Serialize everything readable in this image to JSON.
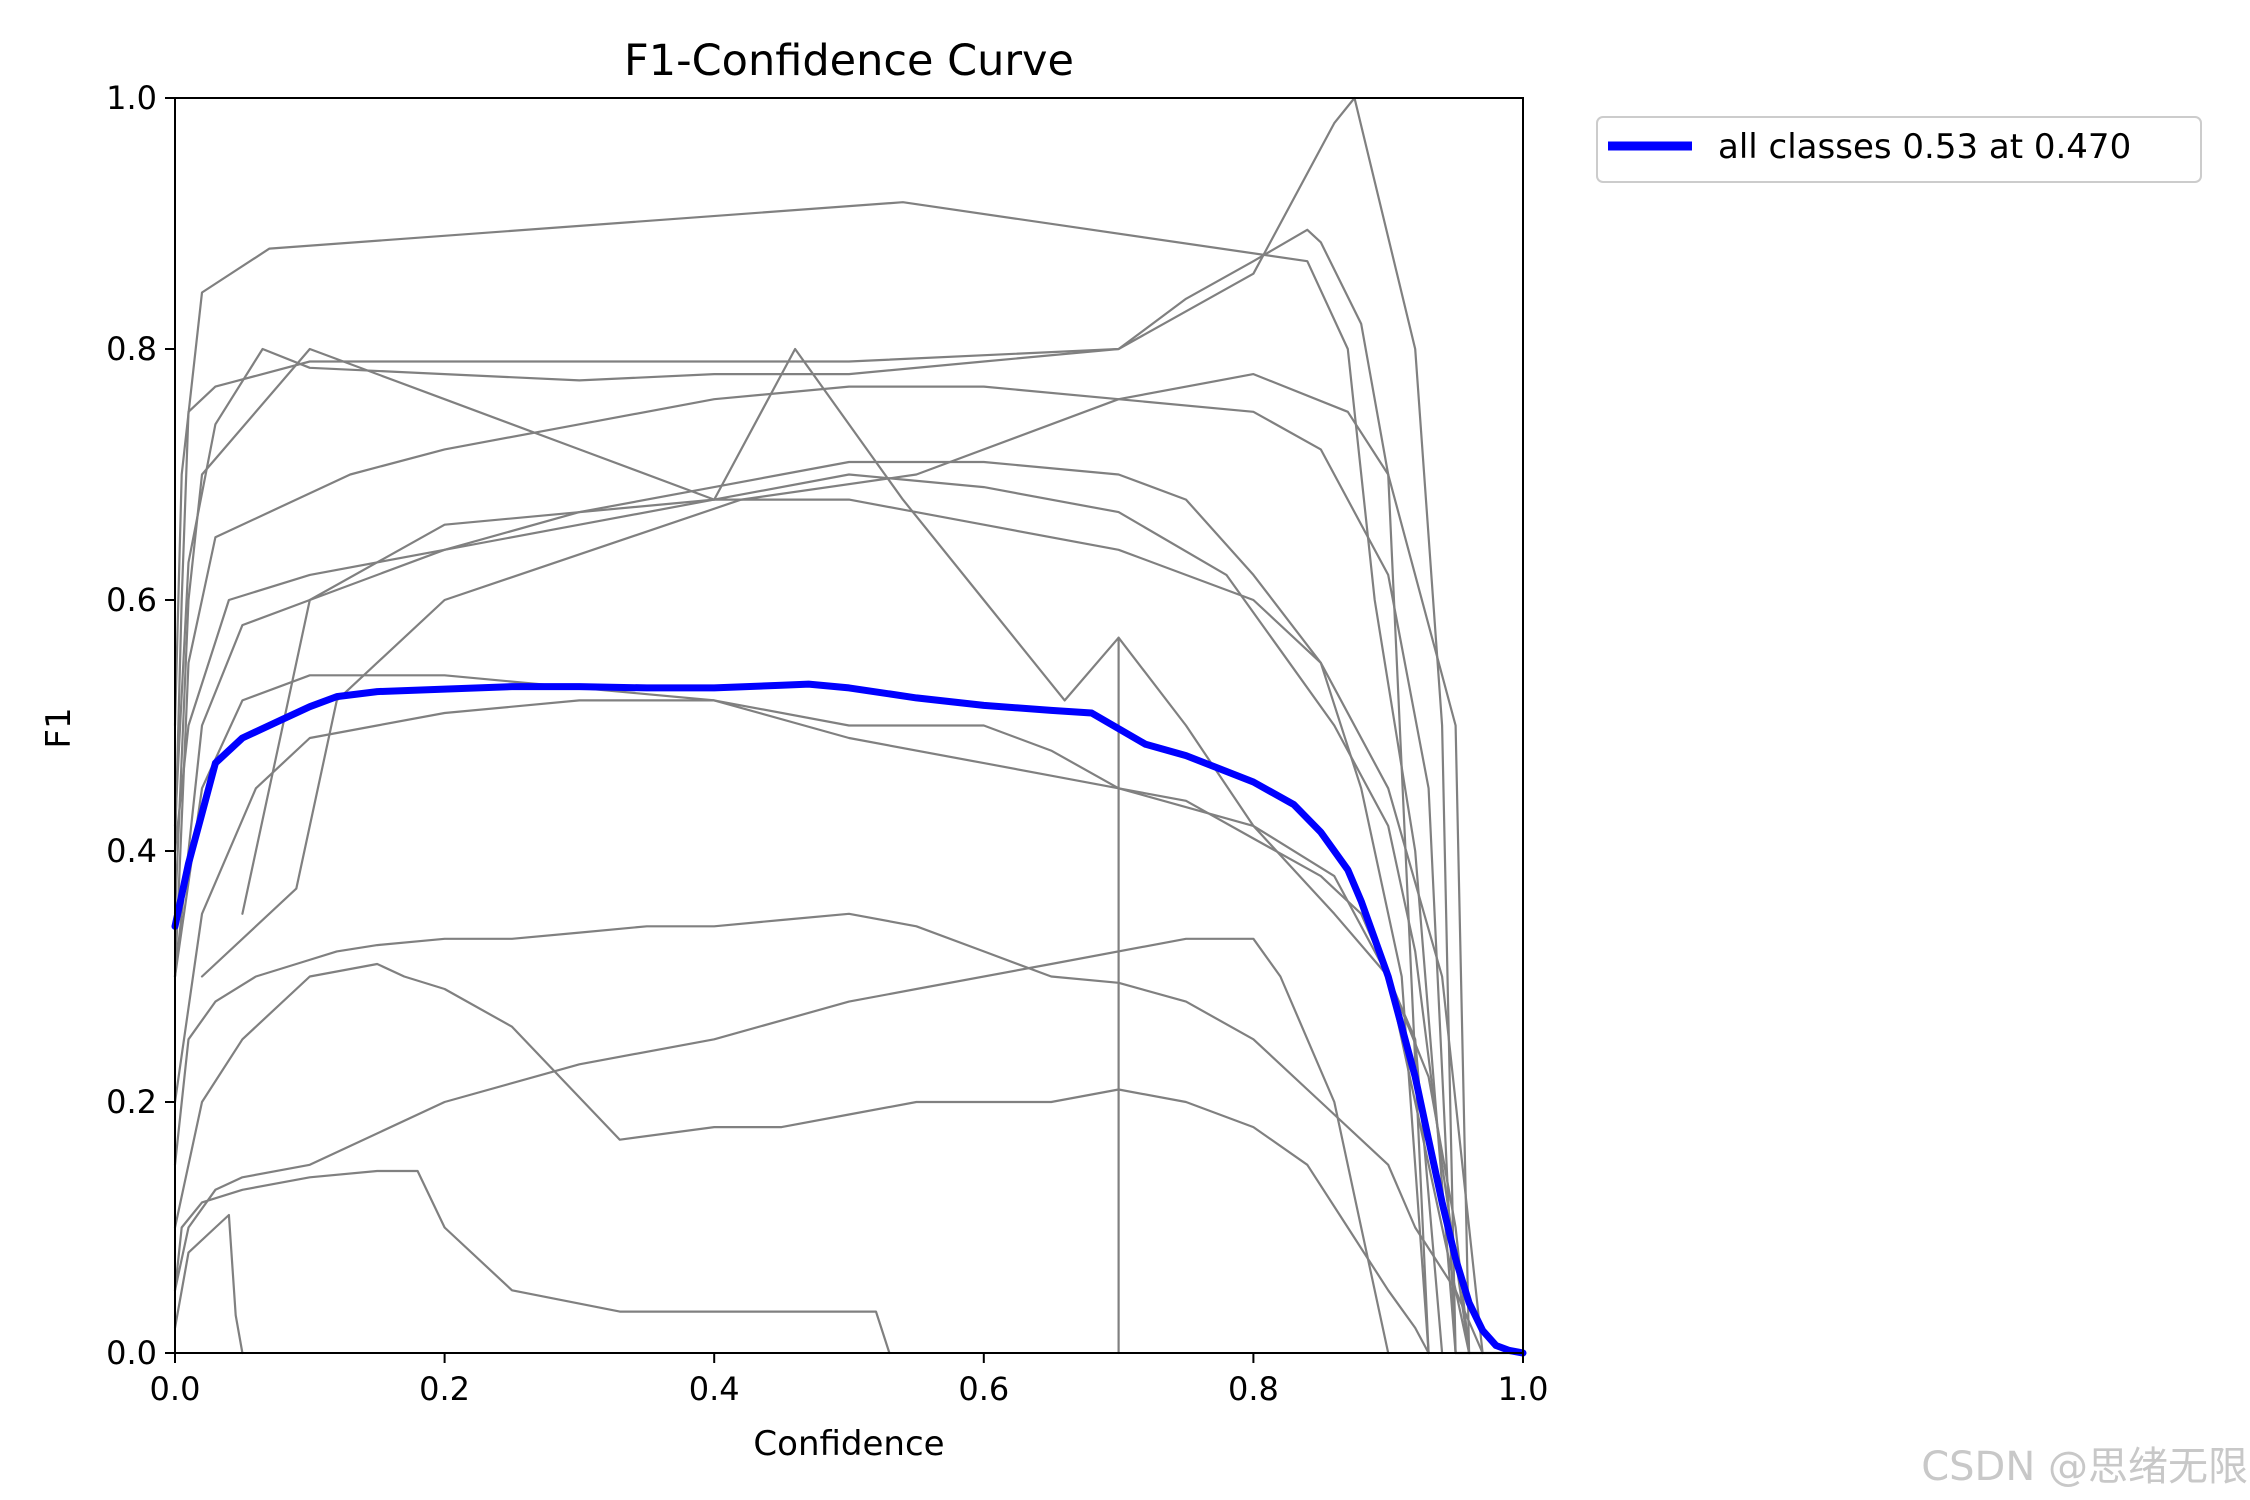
{
  "watermark": "CSDN @思绪无限",
  "chart_data": {
    "type": "line",
    "title": "F1-Confidence Curve",
    "xlabel": "Confidence",
    "ylabel": "F1",
    "xlim": [
      0.0,
      1.0
    ],
    "ylim": [
      0.0,
      1.0
    ],
    "x_ticks": [
      "0.0",
      "0.2",
      "0.4",
      "0.6",
      "0.8",
      "1.0"
    ],
    "y_ticks": [
      "0.0",
      "0.2",
      "0.4",
      "0.6",
      "0.8",
      "1.0"
    ],
    "grid": false,
    "legend": {
      "placement": "outside-top-right",
      "entries": [
        "all classes 0.53 at 0.470"
      ]
    },
    "colors": {
      "class_curves": "#808080",
      "all_classes": "#0000ff"
    },
    "series": [
      {
        "name": "all classes 0.53 at 0.470",
        "highlight": true,
        "x": [
          0.0,
          0.01,
          0.02,
          0.03,
          0.05,
          0.08,
          0.1,
          0.12,
          0.15,
          0.2,
          0.25,
          0.3,
          0.35,
          0.4,
          0.45,
          0.47,
          0.5,
          0.55,
          0.6,
          0.65,
          0.68,
          0.72,
          0.75,
          0.8,
          0.83,
          0.85,
          0.87,
          0.88,
          0.89,
          0.9,
          0.91,
          0.92,
          0.93,
          0.94,
          0.95,
          0.96,
          0.97,
          0.98,
          0.99,
          1.0
        ],
        "y": [
          0.34,
          0.39,
          0.43,
          0.47,
          0.49,
          0.505,
          0.515,
          0.523,
          0.527,
          0.529,
          0.531,
          0.531,
          0.53,
          0.53,
          0.532,
          0.533,
          0.53,
          0.522,
          0.516,
          0.512,
          0.51,
          0.485,
          0.476,
          0.455,
          0.437,
          0.415,
          0.385,
          0.36,
          0.33,
          0.3,
          0.26,
          0.22,
          0.17,
          0.12,
          0.075,
          0.04,
          0.018,
          0.006,
          0.002,
          0.0
        ]
      },
      {
        "x": [
          0.0,
          0.005,
          0.02,
          0.07,
          0.54,
          0.84,
          0.87,
          0.89,
          0.92,
          0.95,
          1.0
        ],
        "y": [
          0.5,
          0.7,
          0.845,
          0.88,
          0.917,
          0.87,
          0.8,
          0.6,
          0.4,
          0.0,
          0.0
        ]
      },
      {
        "x": [
          0.0,
          0.005,
          0.01,
          0.03,
          0.1,
          0.5,
          0.7,
          0.8,
          0.86,
          0.875,
          0.92,
          0.94,
          0.95
        ],
        "y": [
          0.4,
          0.6,
          0.75,
          0.77,
          0.79,
          0.79,
          0.8,
          0.86,
          0.98,
          1.0,
          0.8,
          0.5,
          0.0
        ]
      },
      {
        "x": [
          0.0,
          0.01,
          0.03,
          0.065,
          0.1,
          0.2,
          0.3,
          0.4,
          0.5,
          0.6,
          0.7,
          0.75,
          0.8,
          0.84,
          0.85,
          0.88,
          0.9,
          0.93
        ],
        "y": [
          0.42,
          0.63,
          0.74,
          0.8,
          0.785,
          0.78,
          0.775,
          0.78,
          0.78,
          0.79,
          0.8,
          0.84,
          0.87,
          0.895,
          0.885,
          0.82,
          0.7,
          0.0
        ]
      },
      {
        "x": [
          0.0,
          0.01,
          0.02,
          0.1,
          0.2,
          0.3,
          0.4,
          0.5,
          0.6,
          0.7,
          0.8,
          0.85,
          0.88,
          0.91,
          0.93
        ],
        "y": [
          0.35,
          0.6,
          0.7,
          0.8,
          0.76,
          0.72,
          0.68,
          0.68,
          0.66,
          0.64,
          0.6,
          0.55,
          0.45,
          0.3,
          0.0
        ]
      },
      {
        "x": [
          0.0,
          0.01,
          0.03,
          0.07,
          0.13,
          0.2,
          0.3,
          0.4,
          0.5,
          0.6,
          0.7,
          0.8,
          0.85,
          0.9,
          0.93,
          0.95
        ],
        "y": [
          0.3,
          0.55,
          0.65,
          0.67,
          0.7,
          0.72,
          0.74,
          0.76,
          0.77,
          0.77,
          0.76,
          0.75,
          0.72,
          0.62,
          0.45,
          0.0
        ]
      },
      {
        "x": [
          0.0,
          0.02,
          0.05,
          0.1,
          0.2,
          0.3,
          0.4,
          0.5,
          0.6,
          0.7,
          0.78,
          0.82,
          0.86,
          0.9,
          0.92,
          0.94,
          0.96
        ],
        "y": [
          0.3,
          0.5,
          0.58,
          0.6,
          0.64,
          0.66,
          0.68,
          0.7,
          0.69,
          0.67,
          0.62,
          0.56,
          0.5,
          0.42,
          0.32,
          0.15,
          0.0
        ]
      },
      {
        "x": [
          0.0,
          0.01,
          0.04,
          0.1,
          0.2,
          0.3,
          0.4,
          0.45,
          0.5,
          0.6,
          0.7,
          0.75,
          0.8,
          0.85,
          0.9,
          0.94,
          0.97
        ],
        "y": [
          0.4,
          0.5,
          0.6,
          0.62,
          0.64,
          0.67,
          0.69,
          0.7,
          0.71,
          0.71,
          0.7,
          0.68,
          0.62,
          0.55,
          0.45,
          0.3,
          0.0
        ]
      },
      {
        "x": [
          0.0,
          0.02,
          0.05,
          0.1,
          0.2,
          0.3,
          0.4,
          0.5,
          0.54,
          0.6,
          0.65,
          0.7,
          0.8,
          0.86,
          0.9,
          0.93,
          0.95,
          0.96
        ],
        "y": [
          0.3,
          0.45,
          0.52,
          0.54,
          0.54,
          0.53,
          0.52,
          0.5,
          0.5,
          0.5,
          0.48,
          0.45,
          0.42,
          0.38,
          0.3,
          0.22,
          0.1,
          0.0
        ]
      },
      {
        "x": [
          0.0,
          0.02,
          0.06,
          0.1,
          0.15,
          0.2,
          0.3,
          0.4,
          0.5,
          0.6,
          0.65,
          0.7,
          0.75,
          0.8,
          0.85,
          0.88,
          0.92,
          0.94
        ],
        "y": [
          0.2,
          0.35,
          0.45,
          0.49,
          0.5,
          0.51,
          0.52,
          0.52,
          0.49,
          0.47,
          0.46,
          0.45,
          0.44,
          0.41,
          0.38,
          0.35,
          0.25,
          0.0
        ]
      },
      {
        "x": [
          0.0,
          0.01,
          0.03,
          0.06,
          0.09,
          0.12,
          0.15,
          0.2,
          0.25,
          0.3,
          0.35,
          0.4,
          0.45,
          0.5,
          0.55,
          0.6,
          0.65,
          0.7,
          0.75,
          0.8,
          0.85,
          0.9,
          0.92,
          0.95,
          0.97
        ],
        "y": [
          0.15,
          0.25,
          0.28,
          0.3,
          0.31,
          0.32,
          0.325,
          0.33,
          0.33,
          0.335,
          0.34,
          0.34,
          0.345,
          0.35,
          0.34,
          0.32,
          0.3,
          0.295,
          0.28,
          0.25,
          0.2,
          0.15,
          0.1,
          0.05,
          0.0
        ]
      },
      {
        "x": [
          0.0,
          0.02,
          0.05,
          0.1,
          0.15,
          0.17,
          0.2,
          0.25,
          0.33,
          0.4,
          0.45,
          0.5,
          0.55,
          0.6,
          0.65,
          0.7,
          0.75,
          0.8,
          0.84,
          0.87,
          0.9,
          0.92,
          0.93
        ],
        "y": [
          0.1,
          0.2,
          0.25,
          0.3,
          0.31,
          0.3,
          0.29,
          0.26,
          0.17,
          0.18,
          0.18,
          0.19,
          0.2,
          0.2,
          0.2,
          0.21,
          0.2,
          0.18,
          0.15,
          0.1,
          0.05,
          0.02,
          0.0
        ]
      },
      {
        "x": [
          0.0,
          0.01,
          0.03,
          0.05,
          0.1,
          0.2,
          0.3,
          0.4,
          0.5,
          0.55,
          0.65,
          0.75,
          0.8,
          0.82,
          0.86,
          0.88,
          0.9
        ],
        "y": [
          0.05,
          0.1,
          0.13,
          0.14,
          0.15,
          0.2,
          0.23,
          0.25,
          0.28,
          0.29,
          0.31,
          0.33,
          0.33,
          0.3,
          0.2,
          0.1,
          0.0
        ]
      },
      {
        "x": [
          0.0,
          0.005,
          0.02,
          0.05,
          0.1,
          0.15,
          0.18,
          0.2,
          0.25,
          0.33,
          0.4,
          0.45,
          0.52,
          0.53
        ],
        "y": [
          0.05,
          0.1,
          0.12,
          0.13,
          0.14,
          0.145,
          0.145,
          0.1,
          0.05,
          0.033,
          0.033,
          0.033,
          0.033,
          0.0
        ]
      },
      {
        "x": [
          0.0,
          0.01,
          0.03,
          0.04,
          0.045,
          0.05
        ],
        "y": [
          0.02,
          0.08,
          0.1,
          0.11,
          0.03,
          0.0
        ]
      },
      {
        "x": [
          0.7,
          0.7
        ],
        "y": [
          0.0,
          0.57
        ]
      },
      {
        "x": [
          0.02,
          0.09,
          0.12,
          0.2,
          0.42,
          0.55,
          0.7,
          0.8,
          0.87,
          0.9,
          0.95,
          0.96
        ],
        "y": [
          0.3,
          0.37,
          0.52,
          0.6,
          0.68,
          0.7,
          0.76,
          0.78,
          0.75,
          0.7,
          0.5,
          0.0
        ]
      },
      {
        "x": [
          0.05,
          0.1,
          0.2,
          0.4,
          0.46,
          0.54,
          0.6,
          0.66,
          0.7,
          0.75,
          0.8,
          0.86,
          0.9,
          0.96
        ],
        "y": [
          0.35,
          0.6,
          0.66,
          0.68,
          0.8,
          0.68,
          0.6,
          0.52,
          0.57,
          0.5,
          0.42,
          0.35,
          0.3,
          0.0
        ]
      }
    ]
  }
}
